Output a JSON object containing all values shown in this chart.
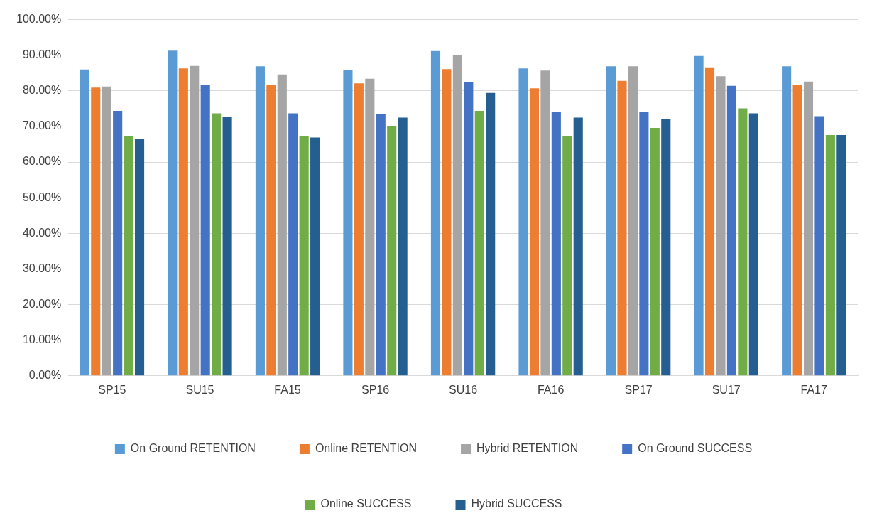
{
  "chart_data": {
    "type": "bar",
    "categories": [
      "SP15",
      "SU15",
      "FA15",
      "SP16",
      "SU16",
      "FA16",
      "SP17",
      "SU17",
      "FA17"
    ],
    "series": [
      {
        "name": "On Ground RETENTION",
        "color": "#5b9bd5",
        "values": [
          86.0,
          91.3,
          86.9,
          85.8,
          91.2,
          86.3,
          86.9,
          89.8,
          86.9
        ]
      },
      {
        "name": "Online RETENTION",
        "color": "#ed7d31",
        "values": [
          80.9,
          86.3,
          81.6,
          82.1,
          86.1,
          80.7,
          82.8,
          86.6,
          81.6
        ]
      },
      {
        "name": "Hybrid RETENTION",
        "color": "#a5a5a5",
        "values": [
          81.2,
          87.0,
          84.6,
          83.4,
          90.1,
          85.7,
          86.9,
          84.1,
          82.6
        ]
      },
      {
        "name": "On Ground SUCCESS",
        "color": "#4472c4",
        "values": [
          74.4,
          81.7,
          73.7,
          73.4,
          82.4,
          74.1,
          74.1,
          81.4,
          72.9
        ]
      },
      {
        "name": "Online SUCCESS",
        "color": "#70ad47",
        "values": [
          67.2,
          73.7,
          67.2,
          70.1,
          74.4,
          67.2,
          69.6,
          75.1,
          67.6
        ]
      },
      {
        "name": "Hybrid SUCCESS",
        "color": "#255e91",
        "values": [
          66.4,
          72.7,
          66.9,
          72.5,
          79.4,
          72.5,
          72.2,
          73.7,
          67.6
        ]
      }
    ],
    "ylim": [
      0,
      100
    ],
    "yticks": [
      {
        "value": 0,
        "label": "0.00%"
      },
      {
        "value": 10,
        "label": "10.00%"
      },
      {
        "value": 20,
        "label": "20.00%"
      },
      {
        "value": 30,
        "label": "30.00%"
      },
      {
        "value": 40,
        "label": "40.00%"
      },
      {
        "value": 50,
        "label": "50.00%"
      },
      {
        "value": 60,
        "label": "60.00%"
      },
      {
        "value": 70,
        "label": "70.00%"
      },
      {
        "value": 80,
        "label": "80.00%"
      },
      {
        "value": 90,
        "label": "90.00%"
      },
      {
        "value": 100,
        "label": "100.00%"
      }
    ],
    "grid": "y",
    "legend": "bottom"
  }
}
